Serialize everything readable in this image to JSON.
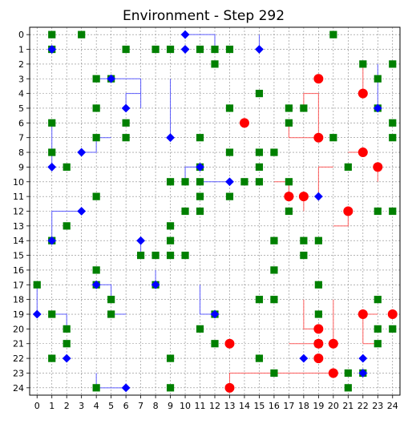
{
  "chart_data": {
    "type": "scatter",
    "title": "Environment - Step 292",
    "xlabel": "",
    "ylabel": "",
    "xlim": [
      0,
      24
    ],
    "ylim": [
      24,
      0
    ],
    "y_inverted": true,
    "grid": true,
    "grid_style": "dashed",
    "x_ticks": [
      "0",
      "1",
      "2",
      "3",
      "4",
      "5",
      "6",
      "7",
      "8",
      "9",
      "10",
      "11",
      "12",
      "13",
      "14",
      "15",
      "16",
      "17",
      "18",
      "19",
      "20",
      "21",
      "22",
      "23",
      "24"
    ],
    "y_ticks": [
      "0",
      "1",
      "2",
      "3",
      "4",
      "5",
      "6",
      "7",
      "8",
      "9",
      "10",
      "11",
      "12",
      "13",
      "14",
      "15",
      "16",
      "17",
      "18",
      "19",
      "20",
      "21",
      "22",
      "23",
      "24"
    ],
    "colors": {
      "food": "#008000",
      "blue_agent": "#0000ff",
      "red_agent": "#ff0000",
      "blue_trail": "#4444ff",
      "red_trail": "#ff4444",
      "grid": "#888888"
    },
    "series": [
      {
        "marker": "square",
        "color": "#008000",
        "points": [
          [
            1,
            0
          ],
          [
            3,
            0
          ],
          [
            20,
            0
          ],
          [
            1,
            1
          ],
          [
            6,
            1
          ],
          [
            8,
            1
          ],
          [
            9,
            1
          ],
          [
            11,
            1
          ],
          [
            12,
            1
          ],
          [
            13,
            1
          ],
          [
            12,
            2
          ],
          [
            22,
            2
          ],
          [
            24,
            2
          ],
          [
            4,
            3
          ],
          [
            5,
            3
          ],
          [
            23,
            3
          ],
          [
            15,
            4
          ],
          [
            4,
            5
          ],
          [
            13,
            5
          ],
          [
            17,
            5
          ],
          [
            18,
            5
          ],
          [
            23,
            5
          ],
          [
            1,
            6
          ],
          [
            6,
            6
          ],
          [
            17,
            6
          ],
          [
            24,
            6
          ],
          [
            4,
            7
          ],
          [
            6,
            7
          ],
          [
            11,
            7
          ],
          [
            20,
            7
          ],
          [
            24,
            7
          ],
          [
            1,
            8
          ],
          [
            13,
            8
          ],
          [
            15,
            8
          ],
          [
            16,
            8
          ],
          [
            2,
            9
          ],
          [
            11,
            9
          ],
          [
            15,
            9
          ],
          [
            21,
            9
          ],
          [
            9,
            10
          ],
          [
            10,
            10
          ],
          [
            11,
            10
          ],
          [
            14,
            10
          ],
          [
            15,
            10
          ],
          [
            17,
            10
          ],
          [
            4,
            11
          ],
          [
            11,
            11
          ],
          [
            13,
            11
          ],
          [
            10,
            12
          ],
          [
            11,
            12
          ],
          [
            17,
            12
          ],
          [
            23,
            12
          ],
          [
            24,
            12
          ],
          [
            2,
            13
          ],
          [
            9,
            13
          ],
          [
            1,
            14
          ],
          [
            9,
            14
          ],
          [
            16,
            14
          ],
          [
            18,
            14
          ],
          [
            19,
            14
          ],
          [
            7,
            15
          ],
          [
            8,
            15
          ],
          [
            9,
            15
          ],
          [
            10,
            15
          ],
          [
            18,
            15
          ],
          [
            4,
            16
          ],
          [
            16,
            16
          ],
          [
            0,
            17
          ],
          [
            4,
            17
          ],
          [
            8,
            17
          ],
          [
            19,
            17
          ],
          [
            5,
            18
          ],
          [
            15,
            18
          ],
          [
            16,
            18
          ],
          [
            23,
            18
          ],
          [
            1,
            19
          ],
          [
            5,
            19
          ],
          [
            12,
            19
          ],
          [
            19,
            19
          ],
          [
            2,
            20
          ],
          [
            11,
            20
          ],
          [
            23,
            20
          ],
          [
            24,
            20
          ],
          [
            2,
            21
          ],
          [
            12,
            21
          ],
          [
            19,
            21
          ],
          [
            23,
            21
          ],
          [
            1,
            22
          ],
          [
            9,
            22
          ],
          [
            15,
            22
          ],
          [
            16,
            23
          ],
          [
            21,
            23
          ],
          [
            22,
            23
          ],
          [
            4,
            24
          ],
          [
            9,
            24
          ],
          [
            21,
            24
          ]
        ]
      },
      {
        "marker": "diamond",
        "color": "#0000ff",
        "points": [
          [
            10,
            0
          ],
          [
            1,
            1
          ],
          [
            10,
            1
          ],
          [
            15,
            1
          ],
          [
            5,
            3
          ],
          [
            6,
            5
          ],
          [
            23,
            5
          ],
          [
            9,
            7
          ],
          [
            3,
            8
          ],
          [
            1,
            9
          ],
          [
            11,
            9
          ],
          [
            13,
            10
          ],
          [
            19,
            11
          ],
          [
            3,
            12
          ],
          [
            1,
            14
          ],
          [
            7,
            14
          ],
          [
            4,
            17
          ],
          [
            8,
            17
          ],
          [
            0,
            19
          ],
          [
            12,
            19
          ],
          [
            2,
            22
          ],
          [
            18,
            22
          ],
          [
            22,
            22
          ],
          [
            22,
            23
          ],
          [
            6,
            24
          ]
        ],
        "trails": [
          [
            [
              10,
              0
            ],
            [
              12,
              0
            ],
            [
              12,
              1
            ]
          ],
          [
            [
              15,
              1
            ],
            [
              15,
              0
            ]
          ],
          [
            [
              5,
              3
            ],
            [
              7,
              3
            ],
            [
              7,
              5
            ]
          ],
          [
            [
              5,
              3
            ],
            [
              4,
              3
            ]
          ],
          [
            [
              6,
              5
            ],
            [
              6,
              4
            ],
            [
              7,
              4
            ]
          ],
          [
            [
              9,
              7
            ],
            [
              9,
              3
            ]
          ],
          [
            [
              23,
              5
            ],
            [
              23,
              2
            ]
          ],
          [
            [
              3,
              8
            ],
            [
              4,
              8
            ],
            [
              4,
              7
            ],
            [
              5,
              7
            ]
          ],
          [
            [
              1,
              9
            ],
            [
              1,
              6
            ]
          ],
          [
            [
              11,
              9
            ],
            [
              10,
              9
            ],
            [
              10,
              10
            ]
          ],
          [
            [
              13,
              10
            ],
            [
              11,
              10
            ]
          ],
          [
            [
              3,
              12
            ],
            [
              2,
              12
            ]
          ],
          [
            [
              1,
              14
            ],
            [
              1,
              12
            ],
            [
              2,
              12
            ]
          ],
          [
            [
              7,
              14
            ],
            [
              7,
              15
            ]
          ],
          [
            [
              4,
              17
            ],
            [
              5,
              17
            ],
            [
              5,
              18
            ]
          ],
          [
            [
              8,
              17
            ],
            [
              8,
              16
            ]
          ],
          [
            [
              0,
              19
            ],
            [
              0,
              17
            ]
          ],
          [
            [
              12,
              19
            ],
            [
              11,
              19
            ],
            [
              11,
              17
            ]
          ],
          [
            [
              1,
              19
            ],
            [
              2,
              19
            ],
            [
              2,
              20
            ]
          ],
          [
            [
              5,
              19
            ],
            [
              6,
              19
            ]
          ],
          [
            [
              6,
              24
            ],
            [
              4,
              24
            ],
            [
              4,
              23
            ]
          ]
        ]
      },
      {
        "marker": "circle",
        "color": "#ff0000",
        "points": [
          [
            19,
            3
          ],
          [
            22,
            4
          ],
          [
            14,
            6
          ],
          [
            19,
            7
          ],
          [
            22,
            8
          ],
          [
            23,
            9
          ],
          [
            17,
            11
          ],
          [
            18,
            11
          ],
          [
            21,
            12
          ],
          [
            22,
            19
          ],
          [
            24,
            19
          ],
          [
            19,
            20
          ],
          [
            19,
            21
          ],
          [
            20,
            21
          ],
          [
            13,
            21
          ],
          [
            19,
            22
          ],
          [
            20,
            23
          ],
          [
            13,
            24
          ]
        ],
        "trails": [
          [
            [
              22,
              4
            ],
            [
              22,
              2
            ]
          ],
          [
            [
              19,
              7
            ],
            [
              17,
              7
            ],
            [
              17,
              6
            ]
          ],
          [
            [
              19,
              7
            ],
            [
              19,
              4
            ],
            [
              18,
              4
            ],
            [
              18,
              5
            ]
          ],
          [
            [
              22,
              8
            ],
            [
              21,
              8
            ]
          ],
          [
            [
              23,
              9
            ],
            [
              23,
              10
            ]
          ],
          [
            [
              18,
              11
            ],
            [
              18,
              12
            ]
          ],
          [
            [
              19,
              11
            ],
            [
              19,
              9
            ],
            [
              20,
              9
            ]
          ],
          [
            [
              21,
              12
            ],
            [
              21,
              13
            ],
            [
              20,
              13
            ]
          ],
          [
            [
              17,
              11
            ],
            [
              17,
              10
            ],
            [
              16,
              10
            ]
          ],
          [
            [
              22,
              19
            ],
            [
              23,
              19
            ]
          ],
          [
            [
              19,
              20
            ],
            [
              18,
              20
            ],
            [
              18,
              18
            ]
          ],
          [
            [
              19,
              21
            ],
            [
              17,
              21
            ]
          ],
          [
            [
              20,
              21
            ],
            [
              20,
              18
            ]
          ],
          [
            [
              20,
              23
            ],
            [
              16,
              23
            ]
          ],
          [
            [
              13,
              24
            ],
            [
              13,
              23
            ],
            [
              16,
              23
            ]
          ],
          [
            [
              22,
              21
            ],
            [
              23,
              21
            ]
          ],
          [
            [
              22,
              19
            ],
            [
              22,
              21
            ]
          ]
        ]
      }
    ]
  }
}
